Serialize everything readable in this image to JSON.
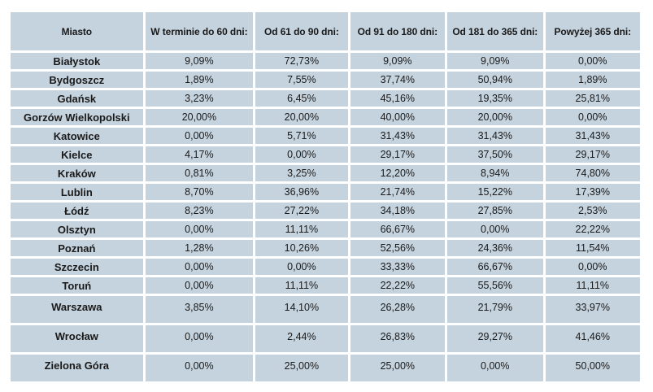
{
  "colors": {
    "cell_bg": "#c5d3de",
    "text": "#1a1a1a",
    "page_bg": "#ffffff"
  },
  "table": {
    "columns": [
      "Miasto",
      "W terminie do 60 dni:",
      "Od 61 do 90 dni:",
      "Od 91 do 180 dni:",
      "Od 181 do 365 dni:",
      "Powyżej 365 dni:"
    ],
    "rows": [
      {
        "city": "Białystok",
        "values": [
          "9,09%",
          "72,73%",
          "9,09%",
          "9,09%",
          "0,00%"
        ]
      },
      {
        "city": "Bydgoszcz",
        "values": [
          "1,89%",
          "7,55%",
          "37,74%",
          "50,94%",
          "1,89%"
        ]
      },
      {
        "city": "Gdańsk",
        "values": [
          "3,23%",
          "6,45%",
          "45,16%",
          "19,35%",
          "25,81%"
        ]
      },
      {
        "city": "Gorzów Wielkopolski",
        "values": [
          "20,00%",
          "20,00%",
          "40,00%",
          "20,00%",
          "0,00%"
        ]
      },
      {
        "city": "Katowice",
        "values": [
          "0,00%",
          "5,71%",
          "31,43%",
          "31,43%",
          "31,43%"
        ]
      },
      {
        "city": "Kielce",
        "values": [
          "4,17%",
          "0,00%",
          "29,17%",
          "37,50%",
          "29,17%"
        ]
      },
      {
        "city": "Kraków",
        "values": [
          "0,81%",
          "3,25%",
          "12,20%",
          "8,94%",
          "74,80%"
        ]
      },
      {
        "city": "Lublin",
        "values": [
          "8,70%",
          "36,96%",
          "21,74%",
          "15,22%",
          "17,39%"
        ]
      },
      {
        "city": "Łódź",
        "values": [
          "8,23%",
          "27,22%",
          "34,18%",
          "27,85%",
          "2,53%"
        ]
      },
      {
        "city": "Olsztyn",
        "values": [
          "0,00%",
          "11,11%",
          "66,67%",
          "0,00%",
          "22,22%"
        ]
      },
      {
        "city": "Poznań",
        "values": [
          "1,28%",
          "10,26%",
          "52,56%",
          "24,36%",
          "11,54%"
        ]
      },
      {
        "city": "Szczecin",
        "values": [
          "0,00%",
          "0,00%",
          "33,33%",
          "66,67%",
          "0,00%"
        ]
      },
      {
        "city": "Toruń",
        "values": [
          "0,00%",
          "11,11%",
          "22,22%",
          "55,56%",
          "11,11%"
        ]
      },
      {
        "city": "Warszawa",
        "values": [
          "3,85%",
          "14,10%",
          "26,28%",
          "21,79%",
          "33,97%"
        ]
      },
      {
        "city": "Wrocław",
        "values": [
          "0,00%",
          "2,44%",
          "26,83%",
          "29,27%",
          "41,46%"
        ]
      },
      {
        "city": "Zielona Góra",
        "values": [
          "0,00%",
          "25,00%",
          "25,00%",
          "0,00%",
          "50,00%"
        ]
      }
    ]
  },
  "chart_data": {
    "type": "table",
    "columns": [
      "Miasto",
      "W terminie do 60 dni:",
      "Od 61 do 90 dni:",
      "Od 91 do 180 dni:",
      "Od 181 do 365 dni:",
      "Powyżej 365 dni:"
    ],
    "value_unit": "percent",
    "value_format": "comma decimal separator, two decimals",
    "rows": [
      [
        "Białystok",
        9.09,
        72.73,
        9.09,
        9.09,
        0.0
      ],
      [
        "Bydgoszcz",
        1.89,
        7.55,
        37.74,
        50.94,
        1.89
      ],
      [
        "Gdańsk",
        3.23,
        6.45,
        45.16,
        19.35,
        25.81
      ],
      [
        "Gorzów Wielkopolski",
        20.0,
        20.0,
        40.0,
        20.0,
        0.0
      ],
      [
        "Katowice",
        0.0,
        5.71,
        31.43,
        31.43,
        31.43
      ],
      [
        "Kielce",
        4.17,
        0.0,
        29.17,
        37.5,
        29.17
      ],
      [
        "Kraków",
        0.81,
        3.25,
        12.2,
        8.94,
        74.8
      ],
      [
        "Lublin",
        8.7,
        36.96,
        21.74,
        15.22,
        17.39
      ],
      [
        "Łódź",
        8.23,
        27.22,
        34.18,
        27.85,
        2.53
      ],
      [
        "Olsztyn",
        0.0,
        11.11,
        66.67,
        0.0,
        22.22
      ],
      [
        "Poznań",
        1.28,
        10.26,
        52.56,
        24.36,
        11.54
      ],
      [
        "Szczecin",
        0.0,
        0.0,
        33.33,
        66.67,
        0.0
      ],
      [
        "Toruń",
        0.0,
        11.11,
        22.22,
        55.56,
        11.11
      ],
      [
        "Warszawa",
        3.85,
        14.1,
        26.28,
        21.79,
        33.97
      ],
      [
        "Wrocław",
        0.0,
        2.44,
        26.83,
        29.27,
        41.46
      ],
      [
        "Zielona Góra",
        0.0,
        25.0,
        25.0,
        0.0,
        50.0
      ]
    ]
  }
}
